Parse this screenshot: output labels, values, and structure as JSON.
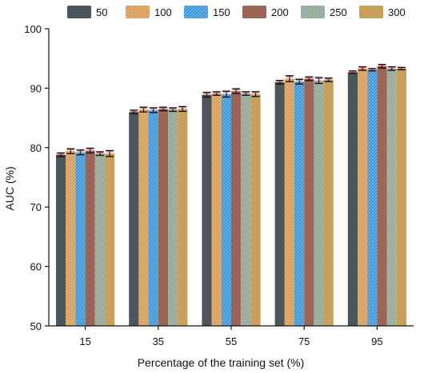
{
  "chart_data": {
    "type": "bar",
    "categories": [
      "15",
      "35",
      "55",
      "75",
      "95"
    ],
    "series": [
      {
        "name": "50",
        "color": "#4b555c",
        "values": [
          78.8,
          86.0,
          88.9,
          91.0,
          92.7
        ],
        "errors": [
          0.3,
          0.3,
          0.4,
          0.3,
          0.2
        ]
      },
      {
        "name": "100",
        "color": "#d99a52",
        "values": [
          79.4,
          86.4,
          89.1,
          91.6,
          93.3
        ],
        "errors": [
          0.4,
          0.4,
          0.3,
          0.5,
          0.3
        ]
      },
      {
        "name": "150",
        "color": "#3b97db",
        "values": [
          79.2,
          86.3,
          89.0,
          91.1,
          93.1
        ],
        "errors": [
          0.4,
          0.4,
          0.5,
          0.4,
          0.2
        ]
      },
      {
        "name": "200",
        "color": "#9b6454",
        "values": [
          79.5,
          86.5,
          89.5,
          91.6,
          93.7
        ],
        "errors": [
          0.4,
          0.3,
          0.4,
          0.3,
          0.3
        ]
      },
      {
        "name": "250",
        "color": "#8fa696",
        "values": [
          79.0,
          86.4,
          89.1,
          91.3,
          93.3
        ],
        "errors": [
          0.3,
          0.3,
          0.3,
          0.5,
          0.3
        ]
      },
      {
        "name": "300",
        "color": "#c9a05a",
        "values": [
          79.0,
          86.5,
          89.0,
          91.4,
          93.3
        ],
        "errors": [
          0.5,
          0.4,
          0.4,
          0.3,
          0.2
        ]
      }
    ],
    "hatched_series": [
      "100",
      "150",
      "250"
    ],
    "xlabel": "Percentage of the training set (%)",
    "ylabel": "AUC (%)",
    "ylim": [
      50,
      100
    ],
    "yticks": [
      50,
      60,
      70,
      80,
      90,
      100
    ],
    "error_bar_color": "#111111",
    "error_cap_color": "#ff4f6a",
    "legend_position": "top",
    "grid": false
  }
}
